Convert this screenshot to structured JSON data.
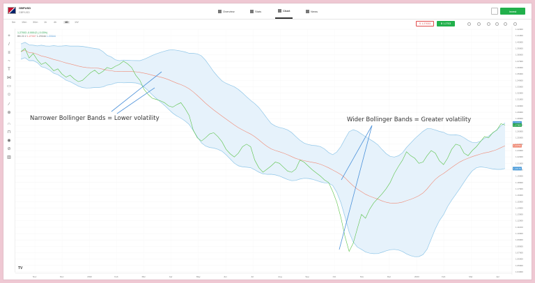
{
  "header": {
    "symbol": "GBPUSD",
    "subtitle": "GBP/USD",
    "tabs": [
      {
        "label": "Overview"
      },
      {
        "label": "Stats"
      },
      {
        "label": "Chart"
      },
      {
        "label": "News"
      }
    ],
    "invest_label": "Invest"
  },
  "toolbar": {
    "timeframes": [
      "5m",
      "15m",
      "30m",
      "1h",
      "4h",
      "1D",
      "1W"
    ],
    "active_timeframe": "1D",
    "sell": {
      "label": "S",
      "value": "1.27033"
    },
    "buy": {
      "label": "B",
      "value": "1.2703"
    }
  },
  "legend": {
    "line1": "1.27003 -0.00042 (-0.03%)",
    "line2_label": "BB 20 2",
    "line2_mid": "1.27007",
    "line2_upper": "1.29346",
    "line2_lower": "1.20544"
  },
  "colors": {
    "price": "#58c246",
    "middle": "#f08a75",
    "band": "#8fc6e8",
    "band_fill": "#e6f2fb",
    "arrow": "#4a90d9"
  },
  "annotations": {
    "narrow": "Narrower Bollinger Bands = Lower volatility",
    "wide": "Wider Bollinger Bands = Greater volatility"
  },
  "chart_data": {
    "type": "line",
    "title": "",
    "xlabel": "",
    "ylabel": "",
    "x_ticks": [
      "Nov",
      "Dec",
      "2022",
      "Feb",
      "Mar",
      "Apr",
      "May",
      "Jun",
      "Jul",
      "Aug",
      "Sep",
      "Oct",
      "Nov",
      "Dec",
      "2023",
      "Feb",
      "Mar",
      "Apr"
    ],
    "ylim": [
      1.04,
      1.42
    ],
    "y_ticks": [
      1.42,
      1.41,
      1.4,
      1.39,
      1.38,
      1.37,
      1.36,
      1.35,
      1.34,
      1.33,
      1.32,
      1.31,
      1.3,
      1.29,
      1.28,
      1.27,
      1.26,
      1.25,
      1.24,
      1.23,
      1.22,
      1.21,
      1.2,
      1.19,
      1.18,
      1.17,
      1.16,
      1.15,
      1.14,
      1.13,
      1.12,
      1.11,
      1.1,
      1.09,
      1.08,
      1.07,
      1.06,
      1.05,
      1.04
    ],
    "series": [
      {
        "name": "GBPUSD",
        "values": [
          1.385,
          1.39,
          1.375,
          1.382,
          1.372,
          1.365,
          1.368,
          1.362,
          1.355,
          1.358,
          1.35,
          1.345,
          1.348,
          1.342,
          1.338,
          1.34,
          1.346,
          1.352,
          1.356,
          1.35,
          1.354,
          1.36,
          1.358,
          1.362,
          1.365,
          1.37,
          1.366,
          1.36,
          1.348,
          1.34,
          1.326,
          1.318,
          1.312,
          1.31,
          1.308,
          1.305,
          1.3,
          1.298,
          1.302,
          1.305,
          1.296,
          1.285,
          1.262,
          1.25,
          1.245,
          1.25,
          1.256,
          1.258,
          1.252,
          1.244,
          1.232,
          1.225,
          1.22,
          1.226,
          1.236,
          1.24,
          1.236,
          1.215,
          1.203,
          1.196,
          1.201,
          1.206,
          1.212,
          1.21,
          1.204,
          1.198,
          1.196,
          1.201,
          1.215,
          1.212,
          1.206,
          1.2,
          1.195,
          1.19,
          1.184,
          1.18,
          1.166,
          1.149,
          1.125,
          1.095,
          1.072,
          1.085,
          1.108,
          1.13,
          1.124,
          1.138,
          1.148,
          1.155,
          1.162,
          1.17,
          1.18,
          1.194,
          1.205,
          1.215,
          1.228,
          1.222,
          1.218,
          1.21,
          1.212,
          1.222,
          1.23,
          1.226,
          1.214,
          1.208,
          1.218,
          1.232,
          1.24,
          1.238,
          1.226,
          1.222,
          1.23,
          1.236,
          1.244,
          1.252,
          1.25,
          1.258,
          1.262,
          1.272,
          1.27
        ]
      }
    ],
    "indicator": {
      "name": "BB 20 2",
      "period": 20,
      "stddev": 2
    }
  }
}
